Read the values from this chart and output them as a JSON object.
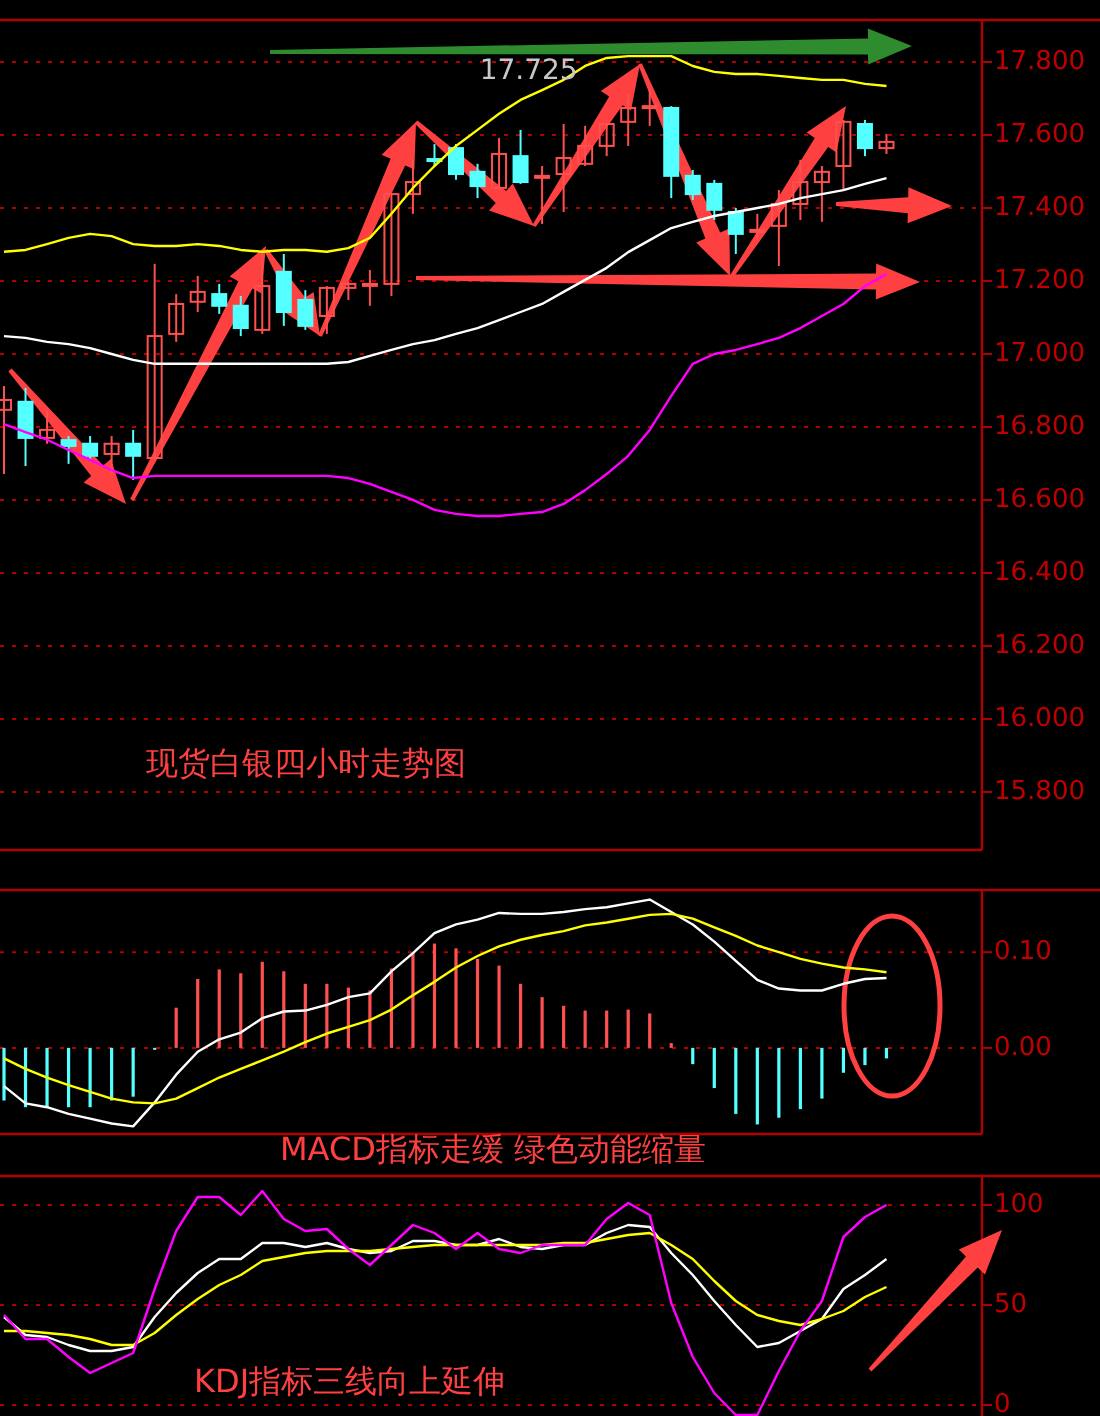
{
  "chart_data": [
    {
      "type": "candlestick",
      "categories": [
        null,
        null,
        null,
        null,
        null,
        null,
        null,
        null,
        null,
        null,
        null,
        null,
        null,
        null,
        null,
        null,
        null,
        null,
        null,
        null,
        null,
        null,
        null,
        null,
        null,
        null,
        null,
        null,
        null,
        null,
        null,
        null,
        null,
        null,
        null,
        null,
        null,
        null,
        null,
        null,
        null,
        null
      ],
      "ohlc": [
        [
          16.847,
          16.912,
          16.671,
          16.874
        ],
        [
          16.869,
          16.907,
          16.693,
          16.77
        ],
        [
          16.77,
          16.847,
          16.754,
          16.792
        ],
        [
          16.764,
          16.775,
          16.699,
          16.748
        ],
        [
          16.754,
          16.775,
          16.71,
          16.721
        ],
        [
          16.726,
          16.775,
          16.671,
          16.754
        ],
        [
          16.754,
          16.792,
          16.655,
          16.721
        ],
        [
          16.715,
          17.247,
          16.71,
          17.049
        ],
        [
          17.055,
          17.164,
          17.033,
          17.137
        ],
        [
          17.143,
          17.214,
          17.115,
          17.17
        ],
        [
          17.164,
          17.192,
          17.11,
          17.132
        ],
        [
          17.132,
          17.159,
          17.049,
          17.071
        ],
        [
          17.066,
          17.274,
          17.055,
          17.186
        ],
        [
          17.225,
          17.274,
          17.077,
          17.115
        ],
        [
          17.148,
          17.175,
          17.066,
          17.077
        ],
        [
          17.104,
          17.186,
          17.055,
          17.181
        ],
        [
          17.181,
          17.197,
          17.148,
          17.192
        ],
        [
          17.189,
          17.23,
          17.132,
          17.192
        ],
        [
          17.192,
          17.44,
          17.159,
          17.438
        ],
        [
          17.438,
          17.532,
          17.384,
          17.471
        ],
        [
          17.534,
          17.575,
          17.515,
          17.53
        ],
        [
          17.564,
          17.575,
          17.477,
          17.493
        ],
        [
          17.499,
          17.521,
          17.427,
          17.46
        ],
        [
          17.455,
          17.592,
          17.449,
          17.548
        ],
        [
          17.542,
          17.614,
          17.466,
          17.471
        ],
        [
          17.486,
          17.515,
          17.356,
          17.488
        ],
        [
          17.493,
          17.63,
          17.389,
          17.537
        ],
        [
          17.521,
          17.625,
          17.515,
          17.57
        ],
        [
          17.57,
          17.632,
          17.542,
          17.63
        ],
        [
          17.636,
          17.712,
          17.57,
          17.674
        ],
        [
          17.677,
          17.725,
          17.625,
          17.679
        ],
        [
          17.674,
          17.679,
          17.427,
          17.488
        ],
        [
          17.488,
          17.504,
          17.422,
          17.438
        ],
        [
          17.466,
          17.477,
          17.367,
          17.395
        ],
        [
          17.389,
          17.4,
          17.274,
          17.329
        ],
        [
          17.338,
          17.384,
          17.312,
          17.34
        ],
        [
          17.351,
          17.449,
          17.241,
          17.411
        ],
        [
          17.411,
          17.532,
          17.367,
          17.471
        ],
        [
          17.471,
          17.515,
          17.362,
          17.499
        ],
        [
          17.515,
          17.641,
          17.449,
          17.636
        ],
        [
          17.63,
          17.641,
          17.542,
          17.564
        ],
        [
          17.564,
          17.603,
          17.548,
          17.581
        ]
      ],
      "colors": [
        "#ff5050",
        "#54ffff",
        "#ff5050",
        "#54ffff",
        "#54ffff",
        "#ff5050",
        "#54ffff",
        "#ff5050",
        "#ff5050",
        "#ff5050",
        "#54ffff",
        "#54ffff",
        "#ff5050",
        "#54ffff",
        "#54ffff",
        "#ff5050",
        "#ff5050",
        "#ff5050",
        "#ff5050",
        "#ff5050",
        "#54ffff",
        "#54ffff",
        "#54ffff",
        "#ff5050",
        "#54ffff",
        "#ff5050",
        "#ff5050",
        "#ff5050",
        "#ff5050",
        "#ff5050",
        "#ff5050",
        "#54ffff",
        "#54ffff",
        "#54ffff",
        "#54ffff",
        "#ff5050",
        "#ff5050",
        "#ff5050",
        "#ff5050",
        "#ff5050",
        "#54ffff",
        "#ff5050"
      ],
      "series": [
        {
          "type": "line",
          "color": "#ffff00",
          "values": [
            17.28,
            17.285,
            17.301,
            17.318,
            17.329,
            17.323,
            17.301,
            17.296,
            17.296,
            17.301,
            17.296,
            17.285,
            17.28,
            17.285,
            17.285,
            17.28,
            17.29,
            17.318,
            17.384,
            17.455,
            17.515,
            17.57,
            17.614,
            17.658,
            17.696,
            17.723,
            17.751,
            17.789,
            17.811,
            17.816,
            17.816,
            17.816,
            17.789,
            17.773,
            17.767,
            17.767,
            17.762,
            17.756,
            17.751,
            17.751,
            17.74,
            17.734
          ]
        },
        {
          "type": "line",
          "color": "#ffffff",
          "values": [
            17.049,
            17.044,
            17.033,
            17.027,
            17.016,
            17.0,
            16.984,
            16.973,
            16.973,
            16.973,
            16.973,
            16.973,
            16.973,
            16.973,
            16.973,
            16.973,
            16.978,
            16.995,
            17.011,
            17.027,
            17.038,
            17.055,
            17.071,
            17.093,
            17.115,
            17.137,
            17.17,
            17.203,
            17.236,
            17.279,
            17.312,
            17.345,
            17.362,
            17.378,
            17.389,
            17.4,
            17.411,
            17.427,
            17.438,
            17.449,
            17.466,
            17.482
          ]
        },
        {
          "type": "line",
          "color": "#ff00ff",
          "values": [
            16.808,
            16.786,
            16.765,
            16.737,
            16.71,
            16.682,
            16.66,
            16.666,
            16.666,
            16.666,
            16.666,
            16.666,
            16.666,
            16.666,
            16.666,
            16.666,
            16.66,
            16.644,
            16.622,
            16.6,
            16.573,
            16.562,
            16.556,
            16.556,
            16.562,
            16.567,
            16.589,
            16.627,
            16.671,
            16.721,
            16.792,
            16.885,
            16.973,
            17.0,
            17.011,
            17.027,
            17.044,
            17.071,
            17.104,
            17.137,
            17.186,
            17.219
          ]
        }
      ],
      "ylim": [
        15.641,
        17.915
      ],
      "yticks": [
        {
          "value": 15.8,
          "label": "15.800"
        },
        {
          "value": 16.0,
          "label": "16.000"
        },
        {
          "value": 16.2,
          "label": "16.200"
        },
        {
          "value": 16.4,
          "label": "16.400"
        },
        {
          "value": 16.6,
          "label": "16.600"
        },
        {
          "value": 16.8,
          "label": "16.800"
        },
        {
          "value": 17.0,
          "label": "17.000"
        },
        {
          "value": 17.2,
          "label": "17.200"
        },
        {
          "value": 17.4,
          "label": "17.400"
        },
        {
          "value": 17.6,
          "label": "17.600"
        },
        {
          "value": 17.8,
          "label": "17.800"
        }
      ],
      "grid": "y",
      "tick_labels": "y",
      "annotations": [
        {
          "text": "17.725",
          "y": 17.725
        },
        "现货白银四小时走势图"
      ]
    },
    {
      "type": "bar",
      "categories": [
        null,
        null,
        null,
        null,
        null,
        null,
        null,
        null,
        null,
        null,
        null,
        null,
        null,
        null,
        null,
        null,
        null,
        null,
        null,
        null,
        null,
        null,
        null,
        null,
        null,
        null,
        null,
        null,
        null,
        null,
        null,
        null,
        null,
        null,
        null,
        null,
        null,
        null,
        null,
        null,
        null,
        null
      ],
      "series": [
        {
          "type": "bar",
          "colors": [
            "#54ffff",
            "#54ffff",
            "#54ffff",
            "#54ffff",
            "#54ffff",
            "#54ffff",
            "#54ffff",
            "#54ffff",
            "#ff5050",
            "#ff5050",
            "#ff5050",
            "#ff5050",
            "#ff5050",
            "#ff5050",
            "#ff5050",
            "#ff5050",
            "#ff5050",
            "#ff5050",
            "#ff5050",
            "#ff5050",
            "#ff5050",
            "#ff5050",
            "#ff5050",
            "#ff5050",
            "#ff5050",
            "#ff5050",
            "#ff5050",
            "#ff5050",
            "#ff5050",
            "#ff5050",
            "#ff5050",
            "#ff5050",
            "#54ffff",
            "#54ffff",
            "#54ffff",
            "#54ffff",
            "#54ffff",
            "#54ffff",
            "#54ffff",
            "#54ffff",
            "#54ffff",
            "#54ffff"
          ],
          "values": [
            -0.055,
            -0.062,
            -0.062,
            -0.062,
            -0.062,
            -0.055,
            -0.051,
            -0.002,
            0.042,
            0.072,
            0.082,
            0.078,
            0.09,
            0.08,
            0.067,
            0.067,
            0.063,
            0.06,
            0.083,
            0.099,
            0.109,
            0.104,
            0.093,
            0.086,
            0.067,
            0.053,
            0.044,
            0.039,
            0.039,
            0.04,
            0.036,
            0.005,
            -0.017,
            -0.042,
            -0.069,
            -0.08,
            -0.073,
            -0.064,
            -0.053,
            -0.026,
            -0.018,
            -0.011
          ]
        },
        {
          "type": "line",
          "color": "#ffffff",
          "values": [
            -0.04,
            -0.058,
            -0.062,
            -0.069,
            -0.074,
            -0.079,
            -0.082,
            -0.057,
            -0.028,
            -0.004,
            0.009,
            0.016,
            0.031,
            0.038,
            0.039,
            0.045,
            0.053,
            0.057,
            0.08,
            0.099,
            0.12,
            0.129,
            0.134,
            0.141,
            0.14,
            0.14,
            0.142,
            0.145,
            0.147,
            0.151,
            0.155,
            0.142,
            0.129,
            0.111,
            0.091,
            0.071,
            0.062,
            0.06,
            0.06,
            0.067,
            0.072,
            0.073
          ]
        },
        {
          "type": "line",
          "color": "#ffff00",
          "values": [
            -0.011,
            -0.022,
            -0.031,
            -0.039,
            -0.046,
            -0.053,
            -0.057,
            -0.058,
            -0.053,
            -0.042,
            -0.031,
            -0.022,
            -0.013,
            -0.004,
            0.006,
            0.015,
            0.022,
            0.029,
            0.04,
            0.055,
            0.069,
            0.084,
            0.096,
            0.106,
            0.113,
            0.118,
            0.122,
            0.128,
            0.131,
            0.135,
            0.139,
            0.14,
            0.135,
            0.126,
            0.117,
            0.107,
            0.1,
            0.093,
            0.088,
            0.084,
            0.082,
            0.079
          ]
        }
      ],
      "ylim": [
        -0.09,
        0.165
      ],
      "yticks": [
        {
          "value": 0,
          "label": "0.00"
        },
        {
          "value": 0.1,
          "label": "0.10"
        }
      ],
      "grid": "y",
      "tick_labels": "y",
      "annotations": [
        "MACD指标走缓 绿色动能缩量"
      ]
    },
    {
      "type": "line",
      "categories": [
        null,
        null,
        null,
        null,
        null,
        null,
        null,
        null,
        null,
        null,
        null,
        null,
        null,
        null,
        null,
        null,
        null,
        null,
        null,
        null,
        null,
        null,
        null,
        null,
        null,
        null,
        null,
        null,
        null,
        null,
        null,
        null,
        null,
        null,
        null,
        null,
        null,
        null,
        null,
        null,
        null,
        null
      ],
      "series": [
        {
          "color": "#ffffff",
          "values": [
            44,
            35,
            34,
            30,
            27,
            27,
            29,
            44,
            56,
            66,
            73,
            73,
            81,
            81,
            79,
            81,
            78,
            76,
            77,
            82,
            82,
            80,
            80,
            83,
            79,
            78,
            80,
            80,
            86,
            90,
            89,
            76,
            65,
            52,
            40,
            29,
            31,
            37,
            43,
            58,
            65,
            73
          ]
        },
        {
          "color": "#ffff00",
          "values": [
            37,
            37,
            36,
            35,
            33,
            30,
            30,
            36,
            45,
            53,
            60,
            65,
            72,
            74,
            76,
            77,
            77,
            77,
            78,
            79,
            80,
            80,
            80,
            80,
            80,
            80,
            81,
            81,
            83,
            85,
            86,
            80,
            73,
            62,
            52,
            45,
            42,
            40,
            43,
            47,
            54,
            59
          ]
        },
        {
          "color": "#ff00ff",
          "values": [
            45,
            33,
            33,
            24,
            16,
            21,
            26,
            58,
            87,
            104,
            104,
            95,
            107,
            93,
            87,
            88,
            78,
            70,
            80,
            90,
            86,
            78,
            86,
            78,
            76,
            80,
            80,
            80,
            93,
            101,
            95,
            51,
            24,
            6,
            -5,
            -5,
            17,
            37,
            52,
            84,
            94,
            100
          ]
        }
      ],
      "ylim": [
        -5.5,
        114.5
      ],
      "yticks": [
        0,
        50,
        100
      ],
      "grid": "y",
      "tick_labels": "y",
      "annotations": [
        "KDJ指标三线向上延伸"
      ]
    }
  ]
}
